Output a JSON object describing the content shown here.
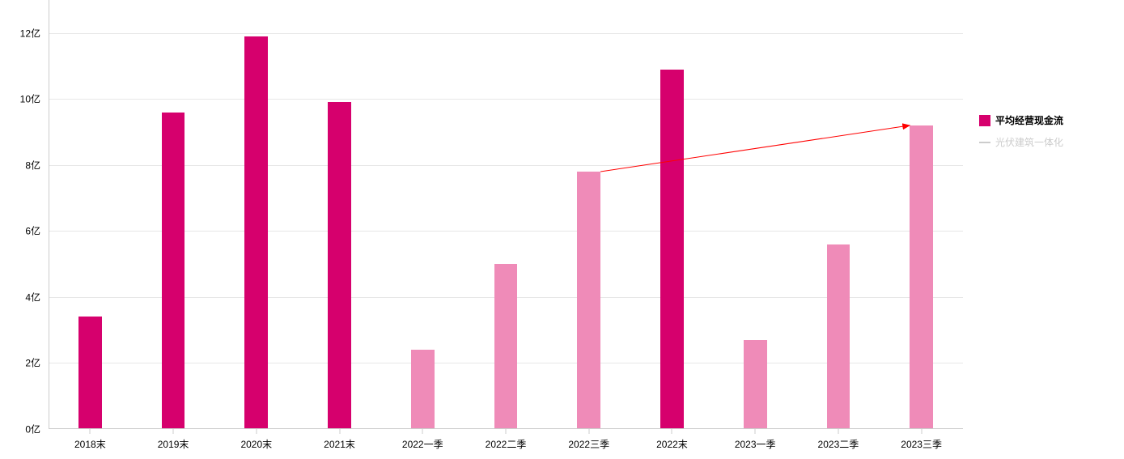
{
  "chart": {
    "type": "bar",
    "background_color": "#ffffff",
    "grid_color": "#e7e7e7",
    "axis_line_color": "#cccccc",
    "label_color": "#000000",
    "label_fontsize": 12,
    "y": {
      "min": 0,
      "max": 13,
      "tick_step": 2,
      "tick_suffix": "亿",
      "ticks": [
        0,
        2,
        4,
        6,
        8,
        10,
        12
      ]
    },
    "x": {
      "categories": [
        "2018末",
        "2019末",
        "2020末",
        "2021末",
        "2022一季",
        "2022二季",
        "2022三季",
        "2022末",
        "2023一季",
        "2023二季",
        "2023三季"
      ]
    },
    "series": {
      "values": [
        3.4,
        9.6,
        11.9,
        9.9,
        2.4,
        5.0,
        7.8,
        10.9,
        2.7,
        5.6,
        9.2
      ],
      "colors": [
        "#d6006d",
        "#d6006d",
        "#d6006d",
        "#d6006d",
        "#ef8bb8",
        "#ef8bb8",
        "#ef8bb8",
        "#d6006d",
        "#ef8bb8",
        "#ef8bb8",
        "#ef8bb8"
      ],
      "bar_width_fraction": 0.28
    },
    "annotation_arrow": {
      "from_category_index": 6,
      "to_category_index": 10,
      "color": "#ff0000",
      "stroke_width": 1
    }
  },
  "legend": {
    "items": [
      {
        "kind": "rect",
        "color": "#d6006d",
        "label": "平均经营现金流",
        "text_color": "#000000",
        "bold": true
      },
      {
        "kind": "line",
        "color": "#cccccc",
        "label": "光伏建筑一体化",
        "text_color": "#cccccc",
        "bold": false
      }
    ]
  }
}
